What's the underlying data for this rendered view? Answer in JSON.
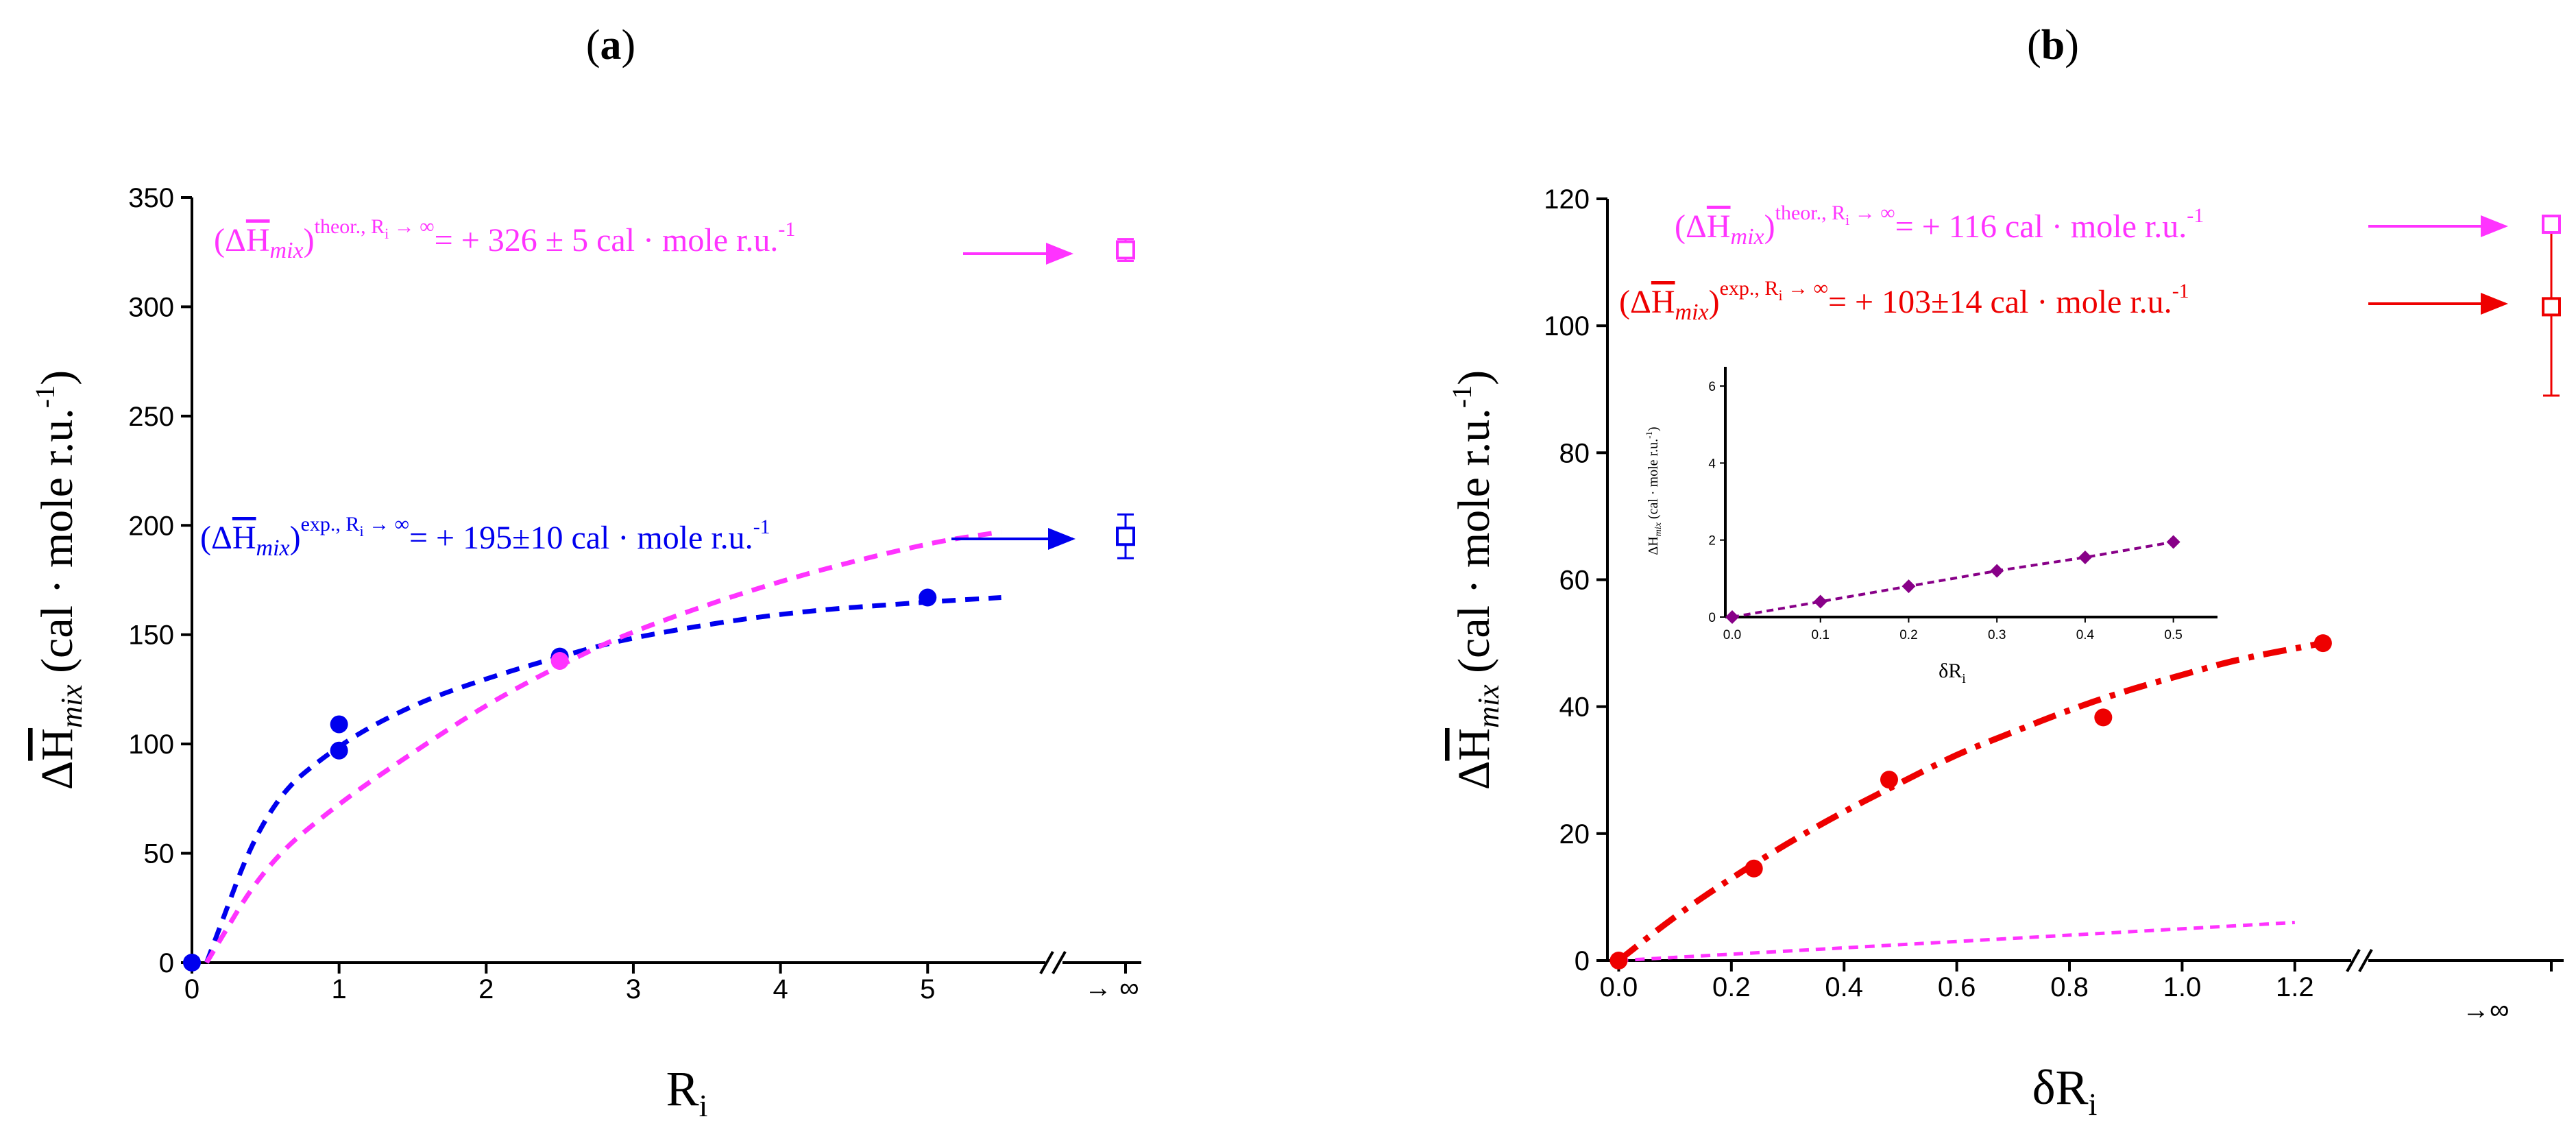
{
  "chart_data": [
    {
      "panel_label": "(a)",
      "type": "scatter",
      "xlabel": "R",
      "xlabel_sub": "i",
      "ylabel_delta": "Δ",
      "ylabel_H": "H",
      "ylabel_sub": "mix",
      "ylabel_unit": " (cal · mole r.u.",
      "ylabel_unit_sup": "-1",
      "ylabel_close": ")",
      "xlim": [
        0,
        5.8
      ],
      "ylim": [
        0,
        350
      ],
      "x_ticks": [
        "0",
        "1",
        "2",
        "3",
        "4",
        "5"
      ],
      "x_inf_label": "→ ∞",
      "y_ticks": [
        "0",
        "50",
        "100",
        "150",
        "200",
        "250",
        "300",
        "350"
      ],
      "series": [
        {
          "name": "experimental",
          "color": "#0000ee",
          "points": [
            [
              0,
              0
            ],
            [
              1,
              97
            ],
            [
              1,
              109
            ],
            [
              2.5,
              140
            ],
            [
              5,
              167
            ]
          ],
          "fit": [
            [
              0.1,
              0
            ],
            [
              0.5,
              72
            ],
            [
              1,
              100
            ],
            [
              1.5,
              118
            ],
            [
              2,
              130
            ],
            [
              2.5,
              140
            ],
            [
              3,
              149
            ],
            [
              4,
              160
            ],
            [
              5,
              165
            ],
            [
              5.5,
              167
            ]
          ],
          "limit_value": 195,
          "limit_error": 10
        },
        {
          "name": "theoretical",
          "color": "#ff33ff",
          "points": [
            [
              2.5,
              138
            ]
          ],
          "fit": [
            [
              0.1,
              0
            ],
            [
              0.5,
              45
            ],
            [
              1,
              73
            ],
            [
              1.5,
              96
            ],
            [
              2,
              118
            ],
            [
              2.5,
              136
            ],
            [
              3,
              152
            ],
            [
              4,
              175
            ],
            [
              5,
              192
            ],
            [
              5.5,
              197
            ]
          ],
          "limit_value": 326,
          "limit_error": 5
        }
      ],
      "annotations": [
        {
          "id": "theor",
          "color": "#ff33ff",
          "open": "(Δ",
          "H": "H",
          "sub": "mix",
          "close": ")",
          "sup": "theor., R",
          "sup_sub": "i",
          "sup_tail": " → ∞",
          "text": "= + 326 ± 5 cal · mole r.u.",
          "text_sup": "-1"
        },
        {
          "id": "exp",
          "color": "#0000ee",
          "open": "(Δ",
          "H": "H",
          "sub": "mix",
          "close": ")",
          "sup": "exp., R",
          "sup_sub": "i",
          "sup_tail": " → ∞",
          "text": "= + 195±10 cal · mole r.u.",
          "text_sup": "-1"
        }
      ]
    },
    {
      "panel_label": "(b)",
      "type": "scatter",
      "xlabel": "δR",
      "xlabel_sub": "i",
      "ylabel_delta": "Δ",
      "ylabel_H": "H",
      "ylabel_sub": "mix",
      "ylabel_unit": " (cal · mole r.u.",
      "ylabel_unit_sup": "-1",
      "ylabel_close": ")",
      "xlim": [
        -0.02,
        1.3
      ],
      "ylim": [
        0,
        120
      ],
      "x_ticks": [
        "0.0",
        "0.2",
        "0.4",
        "0.6",
        "0.8",
        "1.0",
        "1.2"
      ],
      "x_inf_label": "→∞",
      "y_ticks": [
        "0",
        "20",
        "40",
        "60",
        "80",
        "100",
        "120"
      ],
      "series": [
        {
          "name": "experimental",
          "color": "#ee0000",
          "points": [
            [
              0,
              0
            ],
            [
              0.24,
              14.5
            ],
            [
              0.48,
              28.5
            ],
            [
              0.86,
              38.3
            ],
            [
              1.25,
              50
            ]
          ],
          "fit": [
            [
              0,
              0
            ],
            [
              0.1,
              7
            ],
            [
              0.2,
              13
            ],
            [
              0.3,
              18.5
            ],
            [
              0.4,
              23.5
            ],
            [
              0.5,
              28
            ],
            [
              0.6,
              32.5
            ],
            [
              0.7,
              36
            ],
            [
              0.8,
              39.5
            ],
            [
              0.9,
              42.5
            ],
            [
              1.0,
              45
            ],
            [
              1.1,
              47.5
            ],
            [
              1.25,
              50
            ]
          ],
          "limit_value": 103,
          "limit_error": 14
        },
        {
          "name": "theoretical",
          "color": "#ff33ff",
          "points": [],
          "fit": [
            [
              0,
              0
            ],
            [
              1.2,
              6
            ]
          ],
          "limit_value": 116,
          "limit_error": 1
        }
      ],
      "annotations": [
        {
          "id": "theor",
          "color": "#ff33ff",
          "open": "(Δ",
          "H": "H",
          "sub": "mix",
          "close": ")",
          "sup": "theor., R",
          "sup_sub": "i",
          "sup_tail": " → ∞",
          "text": "= + 116 cal · mole r.u.",
          "text_sup": "-1"
        },
        {
          "id": "exp",
          "color": "#ee0000",
          "open": "(Δ",
          "H": "H",
          "sub": "mix",
          "close": ")",
          "sup": "exp., R",
          "sup_sub": "i",
          "sup_tail": " → ∞",
          "text": "= + 103±14 cal · mole r.u.",
          "text_sup": "-1"
        }
      ],
      "inset": {
        "type": "line",
        "xlabel": "δR",
        "xlabel_sub": "i",
        "ylabel": "ΔH",
        "ylabel_sub": "mix",
        "ylabel_unit": " (cal · mole r.u.",
        "ylabel_unit_sup": "-1",
        "ylabel_close": ")",
        "xlim": [
          0,
          0.55
        ],
        "ylim": [
          0,
          6.5
        ],
        "x_ticks": [
          "0.0",
          "0.1",
          "0.2",
          "0.3",
          "0.4",
          "0.5"
        ],
        "y_ticks": [
          "0",
          "2",
          "4",
          "6"
        ],
        "color": "#880088",
        "points": [
          [
            0,
            0
          ],
          [
            0.1,
            0.4
          ],
          [
            0.2,
            0.8
          ],
          [
            0.3,
            1.2
          ],
          [
            0.4,
            1.55
          ],
          [
            0.5,
            1.95
          ]
        ]
      }
    }
  ]
}
